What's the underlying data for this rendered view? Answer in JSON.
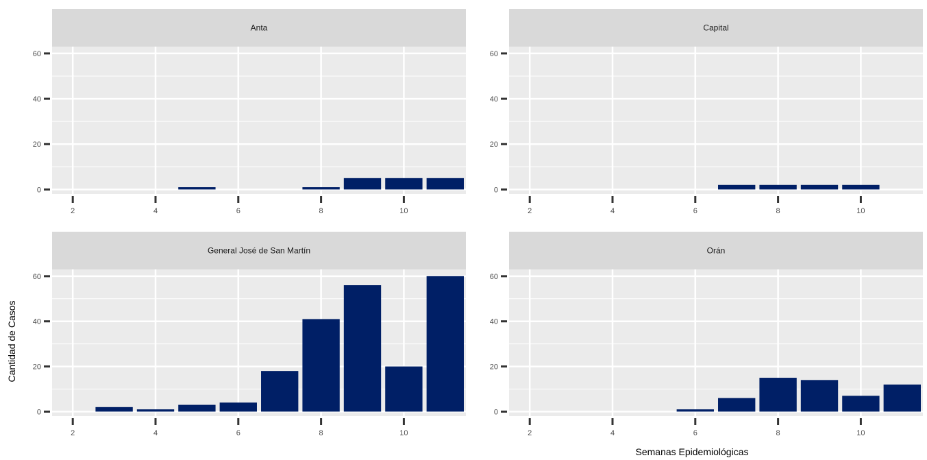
{
  "chart_data": {
    "type": "bar",
    "layout": "facet-grid 2x2",
    "xlabel": "Semanas Epidemiológicas",
    "ylabel": "Cantidad de Casos",
    "xlim": [
      1.5,
      11.5
    ],
    "ylim": [
      -2,
      63
    ],
    "x_ticks": [
      2,
      4,
      6,
      8,
      10
    ],
    "y_ticks": [
      0,
      20,
      40,
      60
    ],
    "bar_color": "#001f66",
    "panel_background": "#ebebeb",
    "strip_background": "#d9d9d9",
    "grid": true,
    "panels": [
      {
        "title": "Anta",
        "x": [
          5,
          8,
          9,
          10,
          11
        ],
        "values": [
          1,
          1,
          5,
          5,
          5
        ]
      },
      {
        "title": "Capital",
        "x": [
          7,
          8,
          9,
          10
        ],
        "values": [
          2,
          2,
          2,
          2
        ]
      },
      {
        "title": "General José de San Martín",
        "x": [
          3,
          4,
          5,
          6,
          7,
          8,
          9,
          10,
          11
        ],
        "values": [
          2,
          1,
          3,
          4,
          18,
          41,
          56,
          20,
          60
        ]
      },
      {
        "title": "Orán",
        "x": [
          6,
          7,
          8,
          9,
          10,
          11
        ],
        "values": [
          1,
          6,
          15,
          14,
          7,
          12
        ]
      }
    ]
  }
}
